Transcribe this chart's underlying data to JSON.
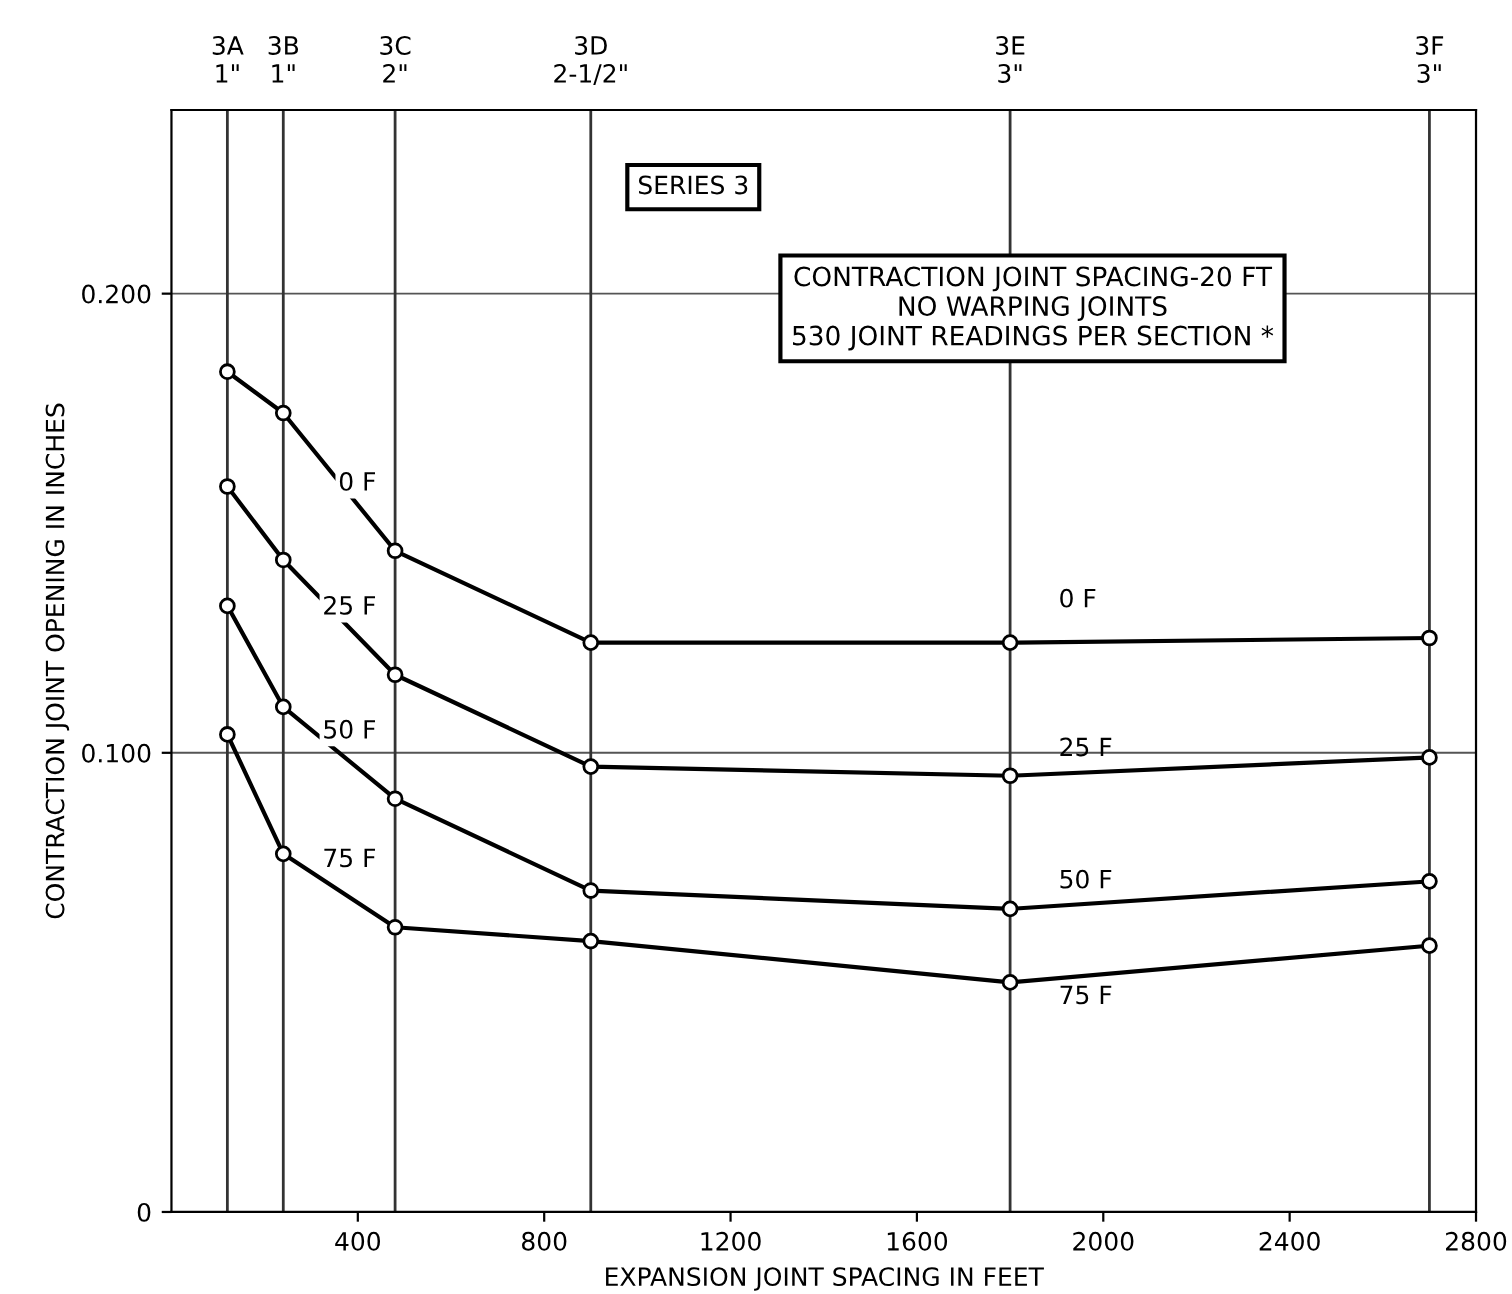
{
  "chart_data": {
    "type": "line",
    "xlabel": "EXPANSION JOINT SPACING IN FEET",
    "ylabel": "CONTRACTION JOINT OPENING IN INCHES",
    "x": [
      120,
      240,
      480,
      900,
      1800,
      2700
    ],
    "series": [
      {
        "name": "0 F",
        "color": "#000000",
        "values": [
          0.183,
          0.174,
          0.144,
          0.124,
          0.124,
          0.125
        ]
      },
      {
        "name": "25 F",
        "color": "#000000",
        "values": [
          0.158,
          0.142,
          0.117,
          0.097,
          0.095,
          0.099
        ]
      },
      {
        "name": "50 F",
        "color": "#000000",
        "values": [
          0.132,
          0.11,
          0.09,
          0.07,
          0.066,
          0.072
        ]
      },
      {
        "name": "75 F",
        "color": "#000000",
        "values": [
          0.104,
          0.078,
          0.062,
          0.059,
          0.05,
          0.058
        ]
      }
    ],
    "xlim": [
      0,
      2800
    ],
    "xticks": [
      400,
      800,
      1200,
      1600,
      2000,
      2400,
      2800
    ],
    "ylim": [
      0,
      0.24
    ],
    "yticks": [
      {
        "value": 0,
        "label": "0"
      },
      {
        "value": 0.1,
        "label": "0.100"
      },
      {
        "value": 0.2,
        "label": "0.200"
      }
    ],
    "ref_lines": [
      {
        "axis": "x",
        "value": 120,
        "label": "3A\n1\""
      },
      {
        "axis": "x",
        "value": 240,
        "label": "3B\n1\""
      },
      {
        "axis": "x",
        "value": 480,
        "label": "3C\n2\""
      },
      {
        "axis": "x",
        "value": 900,
        "label": "3D\n2-1/2\""
      },
      {
        "axis": "x",
        "value": 1800,
        "label": "3E\n3\""
      },
      {
        "axis": "x",
        "value": 2700,
        "label": "3F\n3\""
      }
    ],
    "grid": "y",
    "marker": "circle",
    "line_style": "solid",
    "legend": false,
    "annotations": [
      "SERIES 3",
      "CONTRACTION JOINT SPACING-20 FT\nNO WARPING JOINTS\n530 JOINT READINGS PER SECTION *",
      "0 F",
      "25 F",
      "50 F",
      "75 F"
    ]
  }
}
